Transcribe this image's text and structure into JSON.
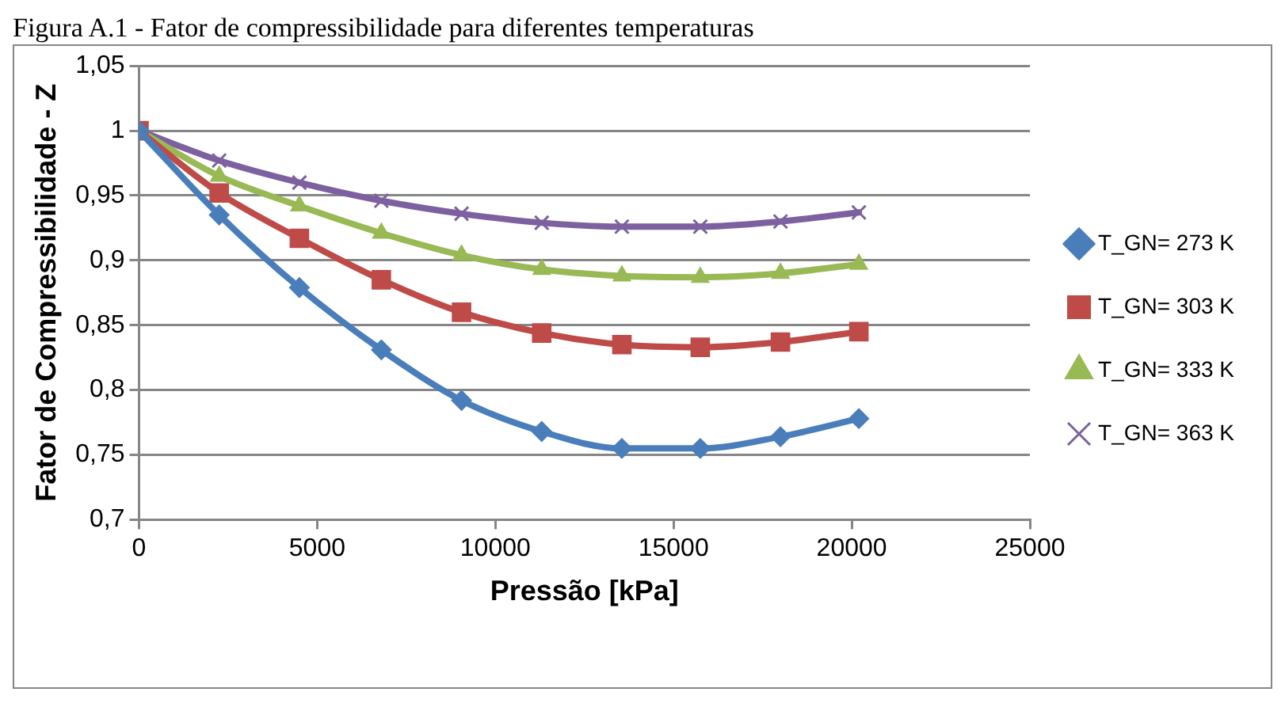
{
  "chart_data": {
    "type": "line",
    "title": "Figura A.1 - Fator de compressibilidade para diferentes temperaturas",
    "xlabel": "Pressão [kPa]",
    "ylabel": "Fator de Compressibilidade - Z",
    "x": [
      0,
      2250,
      4500,
      6800,
      9050,
      11300,
      13550,
      15750,
      18000,
      20200
    ],
    "series": [
      {
        "name": "T_GN= 273 K",
        "color": "#4a7ebb",
        "marker": "diamond",
        "values": [
          1,
          0.935,
          0.879,
          0.831,
          0.792,
          0.768,
          0.755,
          0.755,
          0.764,
          0.778
        ]
      },
      {
        "name": "T_GN= 303 K",
        "color": "#be4b48",
        "marker": "square",
        "values": [
          1,
          0.952,
          0.917,
          0.885,
          0.86,
          0.844,
          0.835,
          0.833,
          0.837,
          0.845
        ]
      },
      {
        "name": "T_GN= 333 K",
        "color": "#98b954",
        "marker": "triangle",
        "values": [
          1,
          0.965,
          0.942,
          0.921,
          0.904,
          0.893,
          0.888,
          0.887,
          0.89,
          0.897
        ]
      },
      {
        "name": "T_GN= 363 K",
        "color": "#7d60a0",
        "marker": "cross",
        "values": [
          1,
          0.977,
          0.96,
          0.946,
          0.936,
          0.929,
          0.926,
          0.926,
          0.93,
          0.937
        ]
      }
    ],
    "xlim": [
      0,
      25000
    ],
    "xticks": [
      0,
      5000,
      10000,
      15000,
      20000,
      25000
    ],
    "ylim": [
      0.7,
      1.05
    ],
    "yticks": [
      {
        "value": 0.7,
        "label": "0,7"
      },
      {
        "value": 0.75,
        "label": "0,75"
      },
      {
        "value": 0.8,
        "label": "0,8"
      },
      {
        "value": 0.85,
        "label": "0,85"
      },
      {
        "value": 0.9,
        "label": "0,9"
      },
      {
        "value": 0.95,
        "label": "0,95"
      },
      1,
      {
        "value": 1.05,
        "label": "1,05"
      }
    ],
    "grid": "y",
    "legend": "right"
  }
}
